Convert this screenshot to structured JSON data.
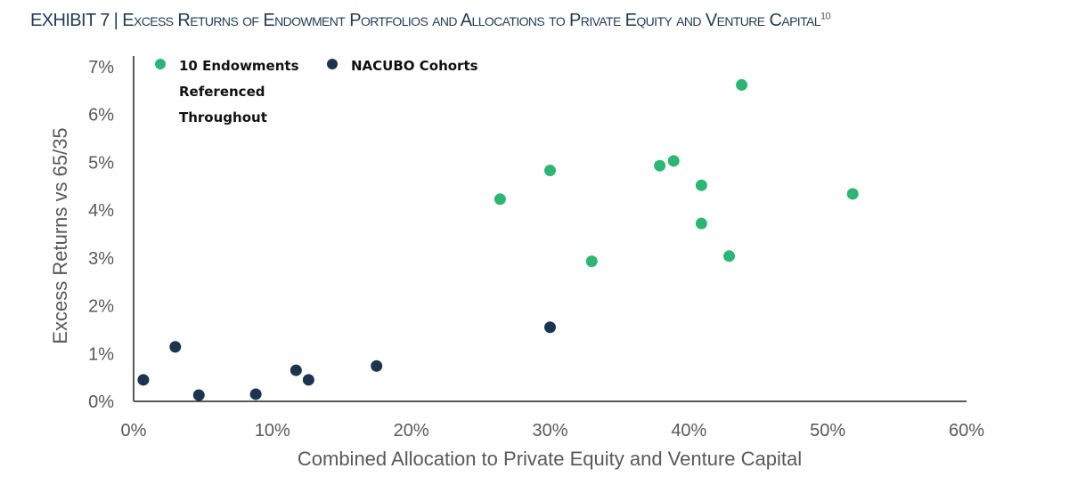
{
  "title": {
    "main": "EXHIBIT 7 | Excess Returns of Endowment Portfolios and Allocations to Private Equity and Venture Capital",
    "footnote": "10"
  },
  "chart_data": {
    "type": "scatter",
    "title": "EXHIBIT 7 | Excess Returns of Endowment Portfolios and Allocations to Private Equity and Venture Capital",
    "xlabel": "Combined Allocation to Private Equity and Venture Capital",
    "ylabel": "Excess Returns vs  65/35",
    "xlim": [
      0,
      60
    ],
    "ylim": [
      0,
      7
    ],
    "xticks": [
      0,
      10,
      20,
      30,
      40,
      50,
      60
    ],
    "yticks": [
      0,
      1,
      2,
      3,
      4,
      5,
      6,
      7
    ],
    "xtick_labels": [
      "0%",
      "10%",
      "20%",
      "30%",
      "40%",
      "50%",
      "60%"
    ],
    "ytick_labels": [
      "0%",
      "1%",
      "2%",
      "3%",
      "4%",
      "5%",
      "6%",
      "7%"
    ],
    "grid": false,
    "legend_position": "top-left",
    "series": [
      {
        "name": "10 Endowments Referenced Throughout",
        "legend_lines": [
          "10 Endowments",
          "Referenced",
          "Throughout"
        ],
        "color": "#2bb673",
        "points": [
          [
            26.4,
            4.23
          ],
          [
            30,
            4.83
          ],
          [
            33,
            2.93
          ],
          [
            37.9,
            4.93
          ],
          [
            38.9,
            5.03
          ],
          [
            40.9,
            4.52
          ],
          [
            40.9,
            3.72
          ],
          [
            43.8,
            6.62
          ],
          [
            42.9,
            3.04
          ],
          [
            51.8,
            4.34
          ]
        ]
      },
      {
        "name": "NACUBO Cohorts",
        "legend_lines": [
          "NACUBO Cohorts"
        ],
        "color": "#1b3550",
        "points": [
          [
            0.7,
            0.45
          ],
          [
            3,
            1.14
          ],
          [
            4.7,
            0.13
          ],
          [
            8.8,
            0.15
          ],
          [
            11.7,
            0.65
          ],
          [
            12.6,
            0.45
          ],
          [
            17.5,
            0.74
          ],
          [
            30,
            1.55
          ]
        ]
      }
    ]
  }
}
